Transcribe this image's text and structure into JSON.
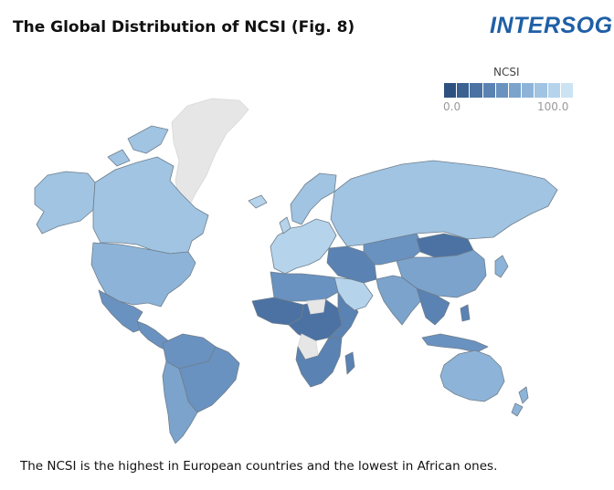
{
  "header": {
    "title": "The Global Distribution of NCSI (Fig. 8)",
    "brand": "INTERSOG"
  },
  "legend": {
    "title": "NCSI",
    "min_label": "0.0",
    "max_label": "100.0",
    "colors": [
      "#2d5281",
      "#3a6191",
      "#4b72a2",
      "#5a82b2",
      "#6a92c0",
      "#7ba3cc",
      "#8db4d8",
      "#a0c4e2",
      "#b5d4ec",
      "#cce3f4"
    ]
  },
  "colors": {
    "no_data": "#e6e6e6",
    "border": "#6f7e8c",
    "brand": "#1f5fa6"
  },
  "map": {
    "regions": [
      {
        "name": "greenland",
        "level": null
      },
      {
        "name": "canada",
        "level": 7
      },
      {
        "name": "alaska",
        "level": 7
      },
      {
        "name": "united-states",
        "level": 6
      },
      {
        "name": "mexico",
        "level": 4
      },
      {
        "name": "central-america",
        "level": 4
      },
      {
        "name": "south-america-north",
        "level": 4
      },
      {
        "name": "brazil",
        "level": 4
      },
      {
        "name": "south-america-south",
        "level": 5
      },
      {
        "name": "europe",
        "level": 8
      },
      {
        "name": "scandinavia",
        "level": 7
      },
      {
        "name": "russia",
        "level": 7
      },
      {
        "name": "north-africa",
        "level": 4
      },
      {
        "name": "west-africa",
        "level": 2
      },
      {
        "name": "central-africa",
        "level": 2
      },
      {
        "name": "east-africa",
        "level": 3
      },
      {
        "name": "southern-africa",
        "level": 3
      },
      {
        "name": "africa-no-data-1",
        "level": null
      },
      {
        "name": "africa-no-data-2",
        "level": null
      },
      {
        "name": "madagascar",
        "level": 3
      },
      {
        "name": "arabian-peninsula",
        "level": 8
      },
      {
        "name": "middle-east",
        "level": 3
      },
      {
        "name": "central-asia",
        "level": 4
      },
      {
        "name": "mongolia",
        "level": 2
      },
      {
        "name": "china",
        "level": 5
      },
      {
        "name": "india",
        "level": 5
      },
      {
        "name": "southeast-asia",
        "level": 3
      },
      {
        "name": "japan",
        "level": 6
      },
      {
        "name": "indonesia",
        "level": 4
      },
      {
        "name": "australia",
        "level": 6
      },
      {
        "name": "new-zealand",
        "level": 6
      }
    ]
  },
  "caption": "The NCSI is the highest in European countries and the lowest in African ones."
}
